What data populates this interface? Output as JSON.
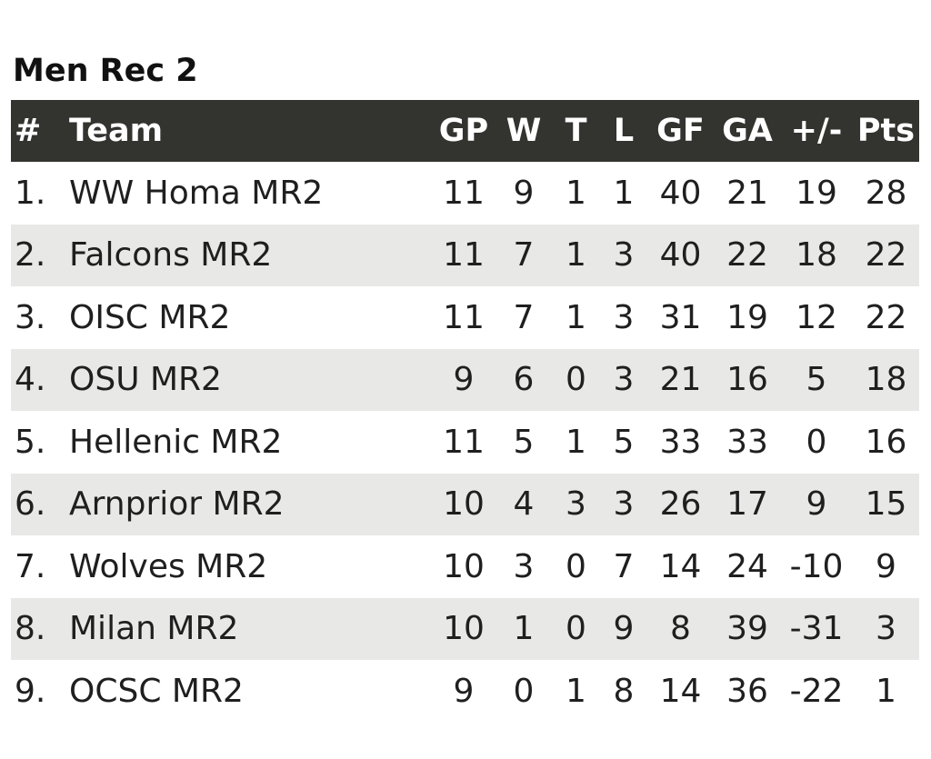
{
  "title": "Men Rec 2",
  "columns": {
    "rank": "#",
    "team": "Team",
    "gp": "GP",
    "w": "W",
    "t": "T",
    "l": "L",
    "gf": "GF",
    "ga": "GA",
    "pm": "+/-",
    "pts": "Pts"
  },
  "rows": [
    {
      "rank": "1.",
      "team": "WW Homa MR2",
      "gp": "11",
      "w": "9",
      "t": "1",
      "l": "1",
      "gf": "40",
      "ga": "21",
      "pm": "19",
      "pts": "28"
    },
    {
      "rank": "2.",
      "team": "Falcons MR2",
      "gp": "11",
      "w": "7",
      "t": "1",
      "l": "3",
      "gf": "40",
      "ga": "22",
      "pm": "18",
      "pts": "22"
    },
    {
      "rank": "3.",
      "team": "OISC MR2",
      "gp": "11",
      "w": "7",
      "t": "1",
      "l": "3",
      "gf": "31",
      "ga": "19",
      "pm": "12",
      "pts": "22"
    },
    {
      "rank": "4.",
      "team": "OSU MR2",
      "gp": "9",
      "w": "6",
      "t": "0",
      "l": "3",
      "gf": "21",
      "ga": "16",
      "pm": "5",
      "pts": "18"
    },
    {
      "rank": "5.",
      "team": "Hellenic MR2",
      "gp": "11",
      "w": "5",
      "t": "1",
      "l": "5",
      "gf": "33",
      "ga": "33",
      "pm": "0",
      "pts": "16"
    },
    {
      "rank": "6.",
      "team": "Arnprior MR2",
      "gp": "10",
      "w": "4",
      "t": "3",
      "l": "3",
      "gf": "26",
      "ga": "17",
      "pm": "9",
      "pts": "15"
    },
    {
      "rank": "7.",
      "team": "Wolves MR2",
      "gp": "10",
      "w": "3",
      "t": "0",
      "l": "7",
      "gf": "14",
      "ga": "24",
      "pm": "-10",
      "pts": "9"
    },
    {
      "rank": "8.",
      "team": "Milan MR2",
      "gp": "10",
      "w": "1",
      "t": "0",
      "l": "9",
      "gf": "8",
      "ga": "39",
      "pm": "-31",
      "pts": "3"
    },
    {
      "rank": "9.",
      "team": "OCSC MR2",
      "gp": "9",
      "w": "0",
      "t": "1",
      "l": "8",
      "gf": "14",
      "ga": "36",
      "pm": "-22",
      "pts": "1"
    }
  ],
  "colors": {
    "header_bg": "#33332f",
    "header_text": "#ffffff",
    "stripe": "#e8e8e6"
  }
}
